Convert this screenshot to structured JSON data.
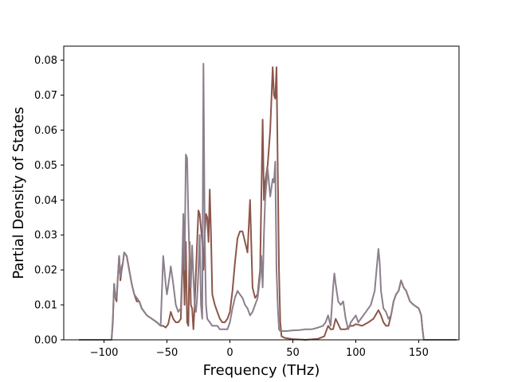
{
  "chart_data": {
    "type": "line",
    "xlabel": "Frequency (THz)",
    "ylabel": "Partial Density of States",
    "xlim": [
      -132,
      182
    ],
    "ylim": [
      0,
      0.084
    ],
    "xticks": [
      -100,
      -50,
      0,
      50,
      100,
      150
    ],
    "xtick_labels": [
      "−100",
      "−50",
      "0",
      "50",
      "100",
      "150"
    ],
    "yticks": [
      0.0,
      0.01,
      0.02,
      0.03,
      0.04,
      0.05,
      0.06,
      0.07,
      0.08
    ],
    "ytick_labels": [
      "0.00",
      "0.01",
      "0.02",
      "0.03",
      "0.04",
      "0.05",
      "0.06",
      "0.07",
      "0.08"
    ],
    "grid": false,
    "legend": false,
    "series": [
      {
        "color": "#8c564b",
        "points": [
          [
            -120,
            0
          ],
          [
            -94,
            0
          ],
          [
            -93,
            0.005
          ],
          [
            -92,
            0.016
          ],
          [
            -91,
            0.012
          ],
          [
            -90,
            0.011
          ],
          [
            -89,
            0.018
          ],
          [
            -88,
            0.024
          ],
          [
            -87,
            0.017
          ],
          [
            -86,
            0.02
          ],
          [
            -85,
            0.022
          ],
          [
            -84,
            0.025
          ],
          [
            -82,
            0.024
          ],
          [
            -80,
            0.02
          ],
          [
            -78,
            0.016
          ],
          [
            -76,
            0.013
          ],
          [
            -74,
            0.011
          ],
          [
            -72,
            0.011
          ],
          [
            -70,
            0.009
          ],
          [
            -66,
            0.007
          ],
          [
            -62,
            0.006
          ],
          [
            -58,
            0.005
          ],
          [
            -55,
            0.004
          ],
          [
            -53,
            0.004
          ],
          [
            -51,
            0.0035
          ],
          [
            -49,
            0.0045
          ],
          [
            -47,
            0.008
          ],
          [
            -45,
            0.006
          ],
          [
            -43,
            0.005
          ],
          [
            -41,
            0.005
          ],
          [
            -39,
            0.006
          ],
          [
            -37,
            0.028
          ],
          [
            -36,
            0.01
          ],
          [
            -35,
            0.028
          ],
          [
            -34,
            0.005
          ],
          [
            -33,
            0.004
          ],
          [
            -32,
            0.028
          ],
          [
            -31,
            0.01
          ],
          [
            -30,
            0.009
          ],
          [
            -29,
            0.003
          ],
          [
            -28,
            0.01
          ],
          [
            -26,
            0.028
          ],
          [
            -25,
            0.037
          ],
          [
            -24,
            0.036
          ],
          [
            -22,
            0.028
          ],
          [
            -21,
            0.02
          ],
          [
            -20,
            0.03
          ],
          [
            -19,
            0.036
          ],
          [
            -18,
            0.035
          ],
          [
            -17,
            0.028
          ],
          [
            -16,
            0.043
          ],
          [
            -15,
            0.03
          ],
          [
            -14,
            0.013
          ],
          [
            -12,
            0.01
          ],
          [
            -10,
            0.008
          ],
          [
            -8,
            0.006
          ],
          [
            -6,
            0.005
          ],
          [
            -4,
            0.005
          ],
          [
            -2,
            0.006
          ],
          [
            0,
            0.008
          ],
          [
            2,
            0.014
          ],
          [
            4,
            0.022
          ],
          [
            6,
            0.029
          ],
          [
            8,
            0.031
          ],
          [
            10,
            0.031
          ],
          [
            12,
            0.028
          ],
          [
            14,
            0.025
          ],
          [
            16,
            0.04
          ],
          [
            18,
            0.015
          ],
          [
            20,
            0.012
          ],
          [
            22,
            0.013
          ],
          [
            24,
            0.02
          ],
          [
            26,
            0.063
          ],
          [
            27,
            0.04
          ],
          [
            28,
            0.045
          ],
          [
            30,
            0.05
          ],
          [
            32,
            0.06
          ],
          [
            34,
            0.078
          ],
          [
            35,
            0.07
          ],
          [
            36,
            0.069
          ],
          [
            37,
            0.078
          ],
          [
            38,
            0.05
          ],
          [
            39,
            0.02
          ],
          [
            40,
            0.005
          ],
          [
            41,
            0.001
          ],
          [
            44,
            0.0005
          ],
          [
            50,
            0.0002
          ],
          [
            60,
            0
          ],
          [
            70,
            0.0003
          ],
          [
            75,
            0.001
          ],
          [
            78,
            0.004
          ],
          [
            80,
            0.003
          ],
          [
            82,
            0.003
          ],
          [
            84,
            0.006
          ],
          [
            86,
            0.0045
          ],
          [
            88,
            0.003
          ],
          [
            90,
            0.003
          ],
          [
            92,
            0.003
          ],
          [
            94,
            0.0035
          ],
          [
            96,
            0.004
          ],
          [
            98,
            0.004
          ],
          [
            100,
            0.0045
          ],
          [
            105,
            0.004
          ],
          [
            110,
            0.005
          ],
          [
            114,
            0.006
          ],
          [
            118,
            0.0085
          ],
          [
            120,
            0.007
          ],
          [
            122,
            0.005
          ],
          [
            124,
            0.004
          ],
          [
            126,
            0.004
          ],
          [
            128,
            0.007
          ],
          [
            130,
            0.011
          ],
          [
            132,
            0.013
          ],
          [
            134,
            0.014
          ],
          [
            136,
            0.017
          ],
          [
            138,
            0.015
          ],
          [
            140,
            0.014
          ],
          [
            143,
            0.011
          ],
          [
            146,
            0.01
          ],
          [
            150,
            0.009
          ],
          [
            152,
            0.007
          ],
          [
            153,
            0.003
          ],
          [
            154,
            0
          ],
          [
            180,
            0
          ]
        ]
      },
      {
        "color": "#8c7f8c",
        "points": [
          [
            -120,
            0
          ],
          [
            -94,
            0
          ],
          [
            -93,
            0.006
          ],
          [
            -92,
            0.016
          ],
          [
            -91,
            0.012
          ],
          [
            -90,
            0.012
          ],
          [
            -89,
            0.018
          ],
          [
            -88,
            0.024
          ],
          [
            -87,
            0.018
          ],
          [
            -86,
            0.021
          ],
          [
            -85,
            0.022
          ],
          [
            -84,
            0.025
          ],
          [
            -82,
            0.024
          ],
          [
            -80,
            0.02
          ],
          [
            -78,
            0.016
          ],
          [
            -76,
            0.013
          ],
          [
            -74,
            0.012
          ],
          [
            -72,
            0.011
          ],
          [
            -70,
            0.009
          ],
          [
            -66,
            0.007
          ],
          [
            -62,
            0.006
          ],
          [
            -58,
            0.005
          ],
          [
            -55,
            0.004
          ],
          [
            -53,
            0.024
          ],
          [
            -52,
            0.02
          ],
          [
            -51,
            0.016
          ],
          [
            -50,
            0.013
          ],
          [
            -48,
            0.018
          ],
          [
            -47,
            0.021
          ],
          [
            -45,
            0.016
          ],
          [
            -43,
            0.01
          ],
          [
            -41,
            0.008
          ],
          [
            -39,
            0.009
          ],
          [
            -38,
            0.02
          ],
          [
            -37,
            0.036
          ],
          [
            -36,
            0.02
          ],
          [
            -35,
            0.053
          ],
          [
            -34,
            0.052
          ],
          [
            -33,
            0.035
          ],
          [
            -32,
            0.022
          ],
          [
            -31,
            0.015
          ],
          [
            -30,
            0.027
          ],
          [
            -29,
            0.018
          ],
          [
            -28,
            0.01
          ],
          [
            -27,
            0.008
          ],
          [
            -26,
            0.012
          ],
          [
            -25,
            0.02
          ],
          [
            -24,
            0.03
          ],
          [
            -23,
            0.01
          ],
          [
            -22,
            0.006
          ],
          [
            -21,
            0.079
          ],
          [
            -20,
            0.03
          ],
          [
            -19,
            0.01
          ],
          [
            -18,
            0.006
          ],
          [
            -16,
            0.005
          ],
          [
            -14,
            0.004
          ],
          [
            -12,
            0.004
          ],
          [
            -10,
            0.004
          ],
          [
            -8,
            0.003
          ],
          [
            -6,
            0.003
          ],
          [
            -4,
            0.003
          ],
          [
            -2,
            0.003
          ],
          [
            0,
            0.005
          ],
          [
            2,
            0.009
          ],
          [
            4,
            0.012
          ],
          [
            6,
            0.014
          ],
          [
            8,
            0.013
          ],
          [
            10,
            0.012
          ],
          [
            12,
            0.01
          ],
          [
            14,
            0.009
          ],
          [
            16,
            0.007
          ],
          [
            18,
            0.008
          ],
          [
            20,
            0.01
          ],
          [
            22,
            0.012
          ],
          [
            24,
            0.018
          ],
          [
            25,
            0.024
          ],
          [
            26,
            0.015
          ],
          [
            27,
            0.03
          ],
          [
            28,
            0.04
          ],
          [
            30,
            0.049
          ],
          [
            31,
            0.045
          ],
          [
            32,
            0.041
          ],
          [
            34,
            0.046
          ],
          [
            35,
            0.045
          ],
          [
            36,
            0.051
          ],
          [
            37,
            0.02
          ],
          [
            38,
            0.01
          ],
          [
            39,
            0.003
          ],
          [
            40,
            0.0025
          ],
          [
            45,
            0.0025
          ],
          [
            50,
            0.0027
          ],
          [
            55,
            0.0028
          ],
          [
            60,
            0.003
          ],
          [
            65,
            0.003
          ],
          [
            70,
            0.0035
          ],
          [
            74,
            0.004
          ],
          [
            76,
            0.005
          ],
          [
            78,
            0.007
          ],
          [
            80,
            0.004
          ],
          [
            82,
            0.015
          ],
          [
            83,
            0.019
          ],
          [
            84,
            0.016
          ],
          [
            86,
            0.011
          ],
          [
            88,
            0.01
          ],
          [
            90,
            0.011
          ],
          [
            92,
            0.006
          ],
          [
            94,
            0.003
          ],
          [
            96,
            0.005
          ],
          [
            98,
            0.006
          ],
          [
            100,
            0.007
          ],
          [
            102,
            0.005
          ],
          [
            104,
            0.006
          ],
          [
            108,
            0.008
          ],
          [
            112,
            0.01
          ],
          [
            115,
            0.014
          ],
          [
            117,
            0.022
          ],
          [
            118,
            0.026
          ],
          [
            119,
            0.022
          ],
          [
            120,
            0.014
          ],
          [
            122,
            0.009
          ],
          [
            124,
            0.008
          ],
          [
            126,
            0.006
          ],
          [
            128,
            0.007
          ],
          [
            130,
            0.011
          ],
          [
            132,
            0.013
          ],
          [
            134,
            0.014
          ],
          [
            136,
            0.017
          ],
          [
            138,
            0.015
          ],
          [
            140,
            0.014
          ],
          [
            143,
            0.011
          ],
          [
            146,
            0.01
          ],
          [
            150,
            0.009
          ],
          [
            152,
            0.007
          ],
          [
            153,
            0.003
          ],
          [
            154,
            0
          ],
          [
            180,
            0
          ]
        ]
      }
    ]
  }
}
